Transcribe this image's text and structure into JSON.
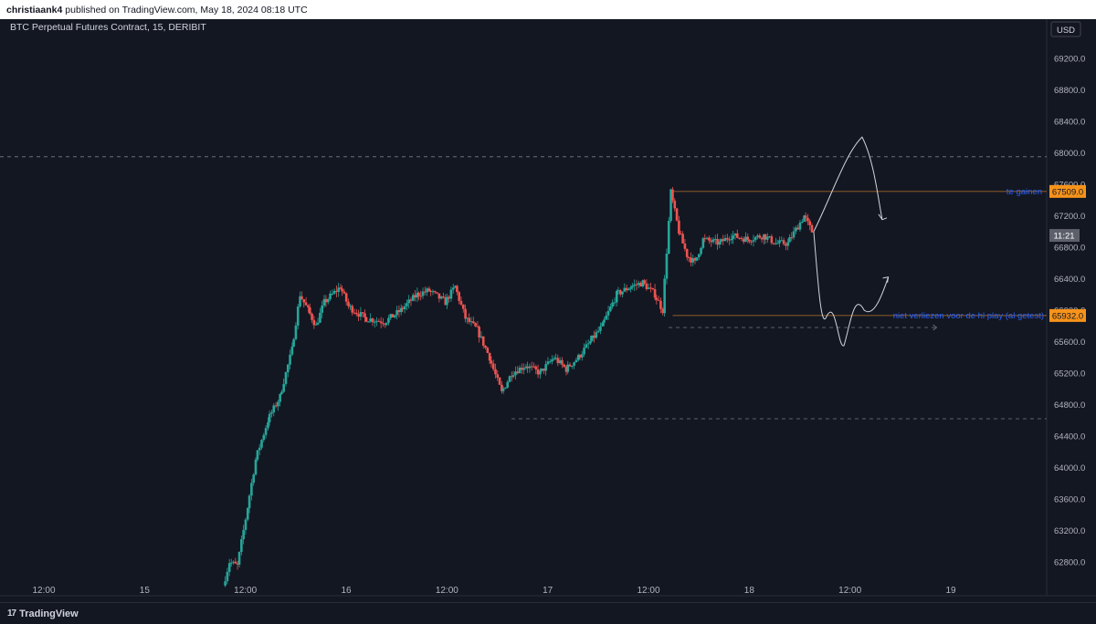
{
  "header": {
    "author": "christiaank4",
    "published_text": "published on TradingView.com, May 18, 2024 08:18 UTC"
  },
  "chart_title": "BTC Perpetual Futures Contract, 15, DERIBIT",
  "currency_button": "USD",
  "footer": {
    "brand": "TradingView",
    "logo_glyph": "17"
  },
  "colors": {
    "background": "#131722",
    "up": "#26a69a",
    "down": "#ef5350",
    "annotation_blue": "#2962ff",
    "price_label_orange": "#f7931a",
    "drawing": "#d1d4dc",
    "grid": "#1e222d"
  },
  "chart_data": {
    "type": "candlestick",
    "title": "BTC Perpetual Futures Contract, 15, DERIBIT",
    "ylim": [
      62600,
      69400
    ],
    "y_ticks": [
      62800,
      63200,
      63600,
      64000,
      64400,
      64800,
      65200,
      65600,
      66000,
      66400,
      66800,
      67200,
      67600,
      68000,
      68400,
      68800,
      69200
    ],
    "y_tick_labels": [
      "62800.0",
      "63200.0",
      "63600.0",
      "64000.0",
      "64400.0",
      "64800.0",
      "65200.0",
      "65600.0",
      "66000.0",
      "66400.0",
      "66800.0",
      "67200.0",
      "67600.0",
      "68000.0",
      "68400.0",
      "68800.0",
      "69200.0"
    ],
    "x_ticks": [
      {
        "label": "12:00",
        "day": 14.5
      },
      {
        "label": "15",
        "day": 15
      },
      {
        "label": "12:00",
        "day": 15.5
      },
      {
        "label": "16",
        "day": 16
      },
      {
        "label": "12:00",
        "day": 16.5
      },
      {
        "label": "17",
        "day": 17
      },
      {
        "label": "12:00",
        "day": 17.5
      },
      {
        "label": "18",
        "day": 18
      },
      {
        "label": "12:00",
        "day": 18.5
      },
      {
        "label": "19",
        "day": 19
      }
    ],
    "x_range_days": [
      14.34,
      19.36
    ],
    "path_keypoints": [
      [
        15.4,
        62500
      ],
      [
        15.43,
        62800
      ],
      [
        15.47,
        62750
      ],
      [
        15.52,
        63500
      ],
      [
        15.56,
        64100
      ],
      [
        15.62,
        64600
      ],
      [
        15.68,
        64900
      ],
      [
        15.74,
        65500
      ],
      [
        15.78,
        66200
      ],
      [
        15.82,
        66000
      ],
      [
        15.86,
        65800
      ],
      [
        15.9,
        66100
      ],
      [
        15.98,
        66300
      ],
      [
        16.02,
        66050
      ],
      [
        16.1,
        65900
      ],
      [
        16.2,
        65850
      ],
      [
        16.28,
        66000
      ],
      [
        16.36,
        66200
      ],
      [
        16.42,
        66250
      ],
      [
        16.5,
        66100
      ],
      [
        16.55,
        66300
      ],
      [
        16.6,
        65900
      ],
      [
        16.66,
        65750
      ],
      [
        16.72,
        65400
      ],
      [
        16.78,
        64950
      ],
      [
        16.83,
        65200
      ],
      [
        16.9,
        65300
      ],
      [
        16.97,
        65200
      ],
      [
        17.04,
        65400
      ],
      [
        17.1,
        65250
      ],
      [
        17.16,
        65400
      ],
      [
        17.22,
        65600
      ],
      [
        17.28,
        65800
      ],
      [
        17.35,
        66200
      ],
      [
        17.42,
        66300
      ],
      [
        17.48,
        66350
      ],
      [
        17.54,
        66200
      ],
      [
        17.58,
        66000
      ],
      [
        17.62,
        67500
      ],
      [
        17.66,
        67000
      ],
      [
        17.7,
        66700
      ],
      [
        17.74,
        66600
      ],
      [
        17.78,
        66900
      ],
      [
        17.86,
        66850
      ],
      [
        17.92,
        66950
      ],
      [
        18.0,
        66900
      ],
      [
        18.08,
        66950
      ],
      [
        18.14,
        66850
      ],
      [
        18.2,
        66850
      ],
      [
        18.28,
        67200
      ],
      [
        18.32,
        67000
      ]
    ],
    "horizontal_levels": [
      {
        "price": 67509,
        "label": "67509.0",
        "style": "solid-thin"
      },
      {
        "price": 65932,
        "label": "65932.0",
        "style": "solid-thin"
      },
      {
        "price": 67950,
        "style": "dashed"
      },
      {
        "price": 64620,
        "style": "dashed"
      },
      {
        "price": 65780,
        "style": "dashed-short"
      }
    ],
    "current_price": {
      "price": 66950,
      "label": "11:21"
    },
    "annotations": [
      {
        "text": "te gainen",
        "price": 67509
      },
      {
        "text": "niet verliezen voor de hl play (al getest)",
        "price": 65932
      }
    ]
  }
}
